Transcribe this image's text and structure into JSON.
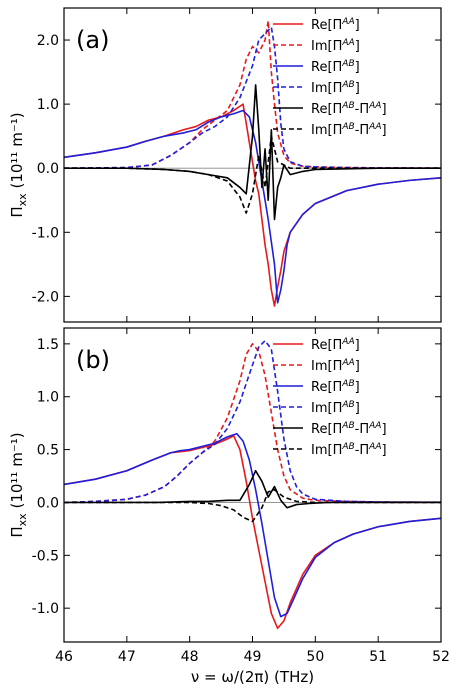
{
  "chart_data": [
    {
      "type": "line",
      "panel_label": "(a)",
      "xlabel": "ν = ω/(2π) (THz)",
      "ylabel": "Π",
      "ylabel_sub": "xx",
      "ylabel_units": "(10¹¹ m⁻¹)",
      "xlim": [
        46,
        52
      ],
      "ylim": [
        -2.4,
        2.5
      ],
      "xticks": [
        46,
        47,
        48,
        49,
        50,
        51,
        52
      ],
      "yticks": [
        -2.0,
        -1.0,
        0.0,
        1.0,
        2.0
      ],
      "ytick_labels": [
        "-2.0",
        "-1.0",
        "0.0",
        "1.0",
        "2.0"
      ],
      "legend_position": "top-right",
      "series": [
        {
          "name": "Re[ΠAA]",
          "label_base": "Re[Π",
          "label_sup": "AA",
          "label_end": "]",
          "color": "#e8191b",
          "style": "solid",
          "x": [
            46.0,
            46.5,
            47.0,
            47.3,
            47.6,
            47.9,
            48.1,
            48.3,
            48.5,
            48.7,
            48.85,
            48.95,
            49.05,
            49.1,
            49.15,
            49.2,
            49.25,
            49.3,
            49.35,
            49.4,
            49.45,
            49.5,
            49.6,
            49.8,
            50.0,
            50.5,
            51.0,
            51.5,
            52.0
          ],
          "y": [
            0.17,
            0.24,
            0.33,
            0.42,
            0.5,
            0.6,
            0.65,
            0.75,
            0.8,
            0.9,
            1.0,
            0.4,
            -0.2,
            -0.4,
            -0.8,
            -1.2,
            -1.5,
            -1.9,
            -2.15,
            -1.85,
            -1.6,
            -1.3,
            -1.0,
            -0.72,
            -0.55,
            -0.35,
            -0.25,
            -0.19,
            -0.15
          ]
        },
        {
          "name": "Im[ΠAA]",
          "label_base": "Im[Π",
          "label_sup": "AA",
          "label_end": "]",
          "color": "#e8191b",
          "style": "dashed",
          "x": [
            46.0,
            47.0,
            47.4,
            47.7,
            48.0,
            48.2,
            48.4,
            48.6,
            48.8,
            48.9,
            49.0,
            49.1,
            49.2,
            49.25,
            49.3,
            49.35,
            49.4,
            49.5,
            49.6,
            49.8,
            50.0,
            50.5,
            51.0,
            52.0
          ],
          "y": [
            0.0,
            0.01,
            0.05,
            0.2,
            0.4,
            0.6,
            0.75,
            0.9,
            1.3,
            1.7,
            1.9,
            1.8,
            2.0,
            2.3,
            1.5,
            1.0,
            0.55,
            0.2,
            0.08,
            0.03,
            0.02,
            0.01,
            0.005,
            0.002
          ]
        },
        {
          "name": "Re[ΠAB]",
          "label_base": "Re[Π",
          "label_sup": "AB",
          "label_end": "]",
          "color": "#1f1fdd",
          "style": "solid",
          "x": [
            46.0,
            46.5,
            47.0,
            47.3,
            47.6,
            47.9,
            48.1,
            48.3,
            48.5,
            48.7,
            48.85,
            48.95,
            49.05,
            49.15,
            49.25,
            49.35,
            49.4,
            49.45,
            49.5,
            49.55,
            49.6,
            49.8,
            50.0,
            50.5,
            51.0,
            51.5,
            52.0
          ],
          "y": [
            0.17,
            0.24,
            0.33,
            0.42,
            0.5,
            0.55,
            0.6,
            0.72,
            0.8,
            0.85,
            0.9,
            0.8,
            0.4,
            -0.2,
            -0.8,
            -1.5,
            -2.1,
            -1.9,
            -1.6,
            -1.2,
            -1.0,
            -0.72,
            -0.55,
            -0.35,
            -0.25,
            -0.19,
            -0.15
          ]
        },
        {
          "name": "Im[ΠAB]",
          "label_base": "Im[Π",
          "label_sup": "AB",
          "label_end": "]",
          "color": "#1f1fdd",
          "style": "dashed",
          "x": [
            46.0,
            47.0,
            47.4,
            47.7,
            48.0,
            48.2,
            48.4,
            48.6,
            48.8,
            49.0,
            49.1,
            49.2,
            49.3,
            49.35,
            49.4,
            49.45,
            49.5,
            49.6,
            49.8,
            50.0,
            50.5,
            51.0,
            52.0
          ],
          "y": [
            0.0,
            0.01,
            0.05,
            0.2,
            0.4,
            0.55,
            0.65,
            0.8,
            1.1,
            1.6,
            2.0,
            2.1,
            2.2,
            1.9,
            1.4,
            0.7,
            0.3,
            0.1,
            0.03,
            0.02,
            0.01,
            0.005,
            0.002
          ]
        },
        {
          "name": "Re[ΠAB-ΠAA]",
          "label_base": "Re[Π",
          "label_sup": "AB",
          "label_mid": "-Π",
          "label_sup2": "AA",
          "label_end": "]",
          "color": "#000000",
          "style": "solid",
          "x": [
            46.0,
            47.0,
            47.6,
            48.0,
            48.3,
            48.6,
            48.8,
            48.9,
            49.0,
            49.05,
            49.1,
            49.15,
            49.2,
            49.25,
            49.3,
            49.35,
            49.4,
            49.45,
            49.5,
            49.6,
            49.8,
            50.0,
            50.5,
            51.0,
            52.0
          ],
          "y": [
            0.0,
            0.0,
            -0.02,
            -0.05,
            -0.1,
            -0.15,
            -0.3,
            -0.4,
            0.5,
            1.3,
            0.6,
            -0.3,
            0.3,
            -0.5,
            0.6,
            -0.8,
            -0.3,
            -0.15,
            0.05,
            -0.1,
            -0.05,
            -0.02,
            -0.01,
            0.0,
            0.0
          ]
        },
        {
          "name": "Im[ΠAB-ΠAA]",
          "label_base": "Im[Π",
          "label_sup": "AB",
          "label_mid": "-Π",
          "label_sup2": "AA",
          "label_end": "]",
          "color": "#000000",
          "style": "dashed",
          "x": [
            46.0,
            47.0,
            47.6,
            48.0,
            48.3,
            48.6,
            48.8,
            48.9,
            49.0,
            49.1,
            49.2,
            49.3,
            49.4,
            49.5,
            49.6,
            49.8,
            50.0,
            51.0,
            52.0
          ],
          "y": [
            0.0,
            0.0,
            -0.02,
            -0.05,
            -0.1,
            -0.2,
            -0.45,
            -0.7,
            -0.4,
            0.2,
            -0.3,
            0.5,
            0.1,
            0.05,
            0.0,
            0.0,
            0.0,
            0.0,
            0.0
          ]
        }
      ]
    },
    {
      "type": "line",
      "panel_label": "(b)",
      "xlabel": "ν = ω/(2π) (THz)",
      "ylabel": "Π",
      "ylabel_sub": "xx",
      "ylabel_units": "(10¹¹ m⁻¹)",
      "xlim": [
        46,
        52
      ],
      "ylim": [
        -1.32,
        1.65
      ],
      "xticks": [
        46,
        47,
        48,
        49,
        50,
        51,
        52
      ],
      "xtick_labels": [
        "46",
        "47",
        "48",
        "49",
        "50",
        "51",
        "52"
      ],
      "yticks": [
        -1.0,
        -0.5,
        0.0,
        0.5,
        1.0,
        1.5
      ],
      "ytick_labels": [
        "-1.0",
        "-0.5",
        "0.0",
        "0.5",
        "1.0",
        "1.5"
      ],
      "legend_position": "top-right",
      "series": [
        {
          "name": "Re[ΠAA]",
          "label_base": "Re[Π",
          "label_sup": "AA",
          "label_end": "]",
          "color": "#e8191b",
          "style": "solid",
          "x": [
            46.0,
            46.5,
            47.0,
            47.4,
            47.7,
            47.85,
            48.0,
            48.2,
            48.4,
            48.6,
            48.7,
            48.8,
            48.9,
            49.0,
            49.1,
            49.2,
            49.3,
            49.4,
            49.5,
            49.6,
            49.8,
            50.0,
            50.3,
            50.6,
            51.0,
            51.5,
            52.0
          ],
          "y": [
            0.17,
            0.22,
            0.3,
            0.4,
            0.47,
            0.48,
            0.49,
            0.52,
            0.55,
            0.6,
            0.63,
            0.5,
            0.2,
            -0.15,
            -0.45,
            -0.75,
            -1.05,
            -1.19,
            -1.12,
            -0.95,
            -0.68,
            -0.5,
            -0.38,
            -0.3,
            -0.23,
            -0.18,
            -0.15
          ]
        },
        {
          "name": "Im[ΠAA]",
          "label_base": "Im[Π",
          "label_sup": "AA",
          "label_end": "]",
          "color": "#e8191b",
          "style": "dashed",
          "x": [
            46.0,
            46.5,
            47.0,
            47.3,
            47.6,
            47.8,
            48.0,
            48.2,
            48.4,
            48.6,
            48.8,
            48.9,
            49.0,
            49.1,
            49.2,
            49.3,
            49.4,
            49.5,
            49.6,
            49.8,
            50.0,
            50.5,
            51.0,
            52.0
          ],
          "y": [
            0.0,
            0.01,
            0.03,
            0.07,
            0.15,
            0.25,
            0.37,
            0.47,
            0.58,
            0.8,
            1.15,
            1.4,
            1.5,
            1.43,
            1.2,
            0.85,
            0.5,
            0.25,
            0.12,
            0.04,
            0.02,
            0.01,
            0.005,
            0.002
          ]
        },
        {
          "name": "Re[ΠAB]",
          "label_base": "Re[Π",
          "label_sup": "AB",
          "label_end": "]",
          "color": "#1f1fdd",
          "style": "solid",
          "x": [
            46.0,
            46.5,
            47.0,
            47.4,
            47.7,
            47.85,
            48.0,
            48.2,
            48.4,
            48.6,
            48.75,
            48.85,
            48.95,
            49.05,
            49.15,
            49.25,
            49.35,
            49.45,
            49.55,
            49.65,
            49.8,
            50.0,
            50.3,
            50.6,
            51.0,
            51.5,
            52.0
          ],
          "y": [
            0.17,
            0.22,
            0.3,
            0.4,
            0.47,
            0.49,
            0.5,
            0.53,
            0.56,
            0.62,
            0.65,
            0.58,
            0.4,
            0.12,
            -0.2,
            -0.55,
            -0.9,
            -1.08,
            -1.05,
            -0.92,
            -0.72,
            -0.52,
            -0.38,
            -0.3,
            -0.23,
            -0.18,
            -0.15
          ]
        },
        {
          "name": "Im[ΠAB]",
          "label_base": "Im[Π",
          "label_sup": "AB",
          "label_end": "]",
          "color": "#1f1fdd",
          "style": "dashed",
          "x": [
            46.0,
            46.5,
            47.0,
            47.3,
            47.6,
            47.8,
            48.0,
            48.2,
            48.4,
            48.6,
            48.8,
            49.0,
            49.1,
            49.2,
            49.3,
            49.4,
            49.5,
            49.6,
            49.7,
            49.8,
            50.0,
            50.5,
            51.0,
            52.0
          ],
          "y": [
            0.0,
            0.01,
            0.03,
            0.07,
            0.15,
            0.25,
            0.37,
            0.47,
            0.55,
            0.7,
            0.95,
            1.3,
            1.47,
            1.53,
            1.45,
            1.05,
            0.6,
            0.3,
            0.15,
            0.08,
            0.03,
            0.01,
            0.005,
            0.002
          ]
        },
        {
          "name": "Re[ΠAB-ΠAA]",
          "label_base": "Re[Π",
          "label_sup": "AB",
          "label_mid": "-Π",
          "label_sup2": "AA",
          "label_end": "]",
          "color": "#000000",
          "style": "solid",
          "x": [
            46.0,
            47.0,
            47.5,
            48.0,
            48.3,
            48.6,
            48.8,
            48.95,
            49.05,
            49.15,
            49.25,
            49.35,
            49.45,
            49.55,
            49.7,
            49.9,
            50.2,
            50.6,
            51.0,
            52.0
          ],
          "y": [
            0.0,
            0.0,
            0.0,
            0.01,
            0.01,
            0.02,
            0.02,
            0.17,
            0.3,
            0.2,
            0.05,
            0.15,
            0.02,
            -0.05,
            -0.02,
            -0.01,
            0.0,
            0.0,
            0.0,
            0.0
          ]
        },
        {
          "name": "Im[ΠAB-ΠAA]",
          "label_base": "Im[Π",
          "label_sup": "AB",
          "label_mid": "-Π",
          "label_sup2": "AA",
          "label_end": "]",
          "color": "#000000",
          "style": "dashed",
          "x": [
            46.0,
            47.0,
            47.5,
            48.0,
            48.3,
            48.5,
            48.7,
            48.85,
            49.0,
            49.15,
            49.25,
            49.35,
            49.5,
            49.7,
            50.0,
            50.5,
            51.0,
            52.0
          ],
          "y": [
            0.0,
            0.0,
            0.0,
            0.0,
            -0.01,
            -0.03,
            -0.07,
            -0.14,
            -0.18,
            -0.05,
            0.1,
            0.12,
            0.05,
            0.01,
            0.0,
            0.0,
            0.0,
            0.0
          ]
        }
      ]
    }
  ]
}
